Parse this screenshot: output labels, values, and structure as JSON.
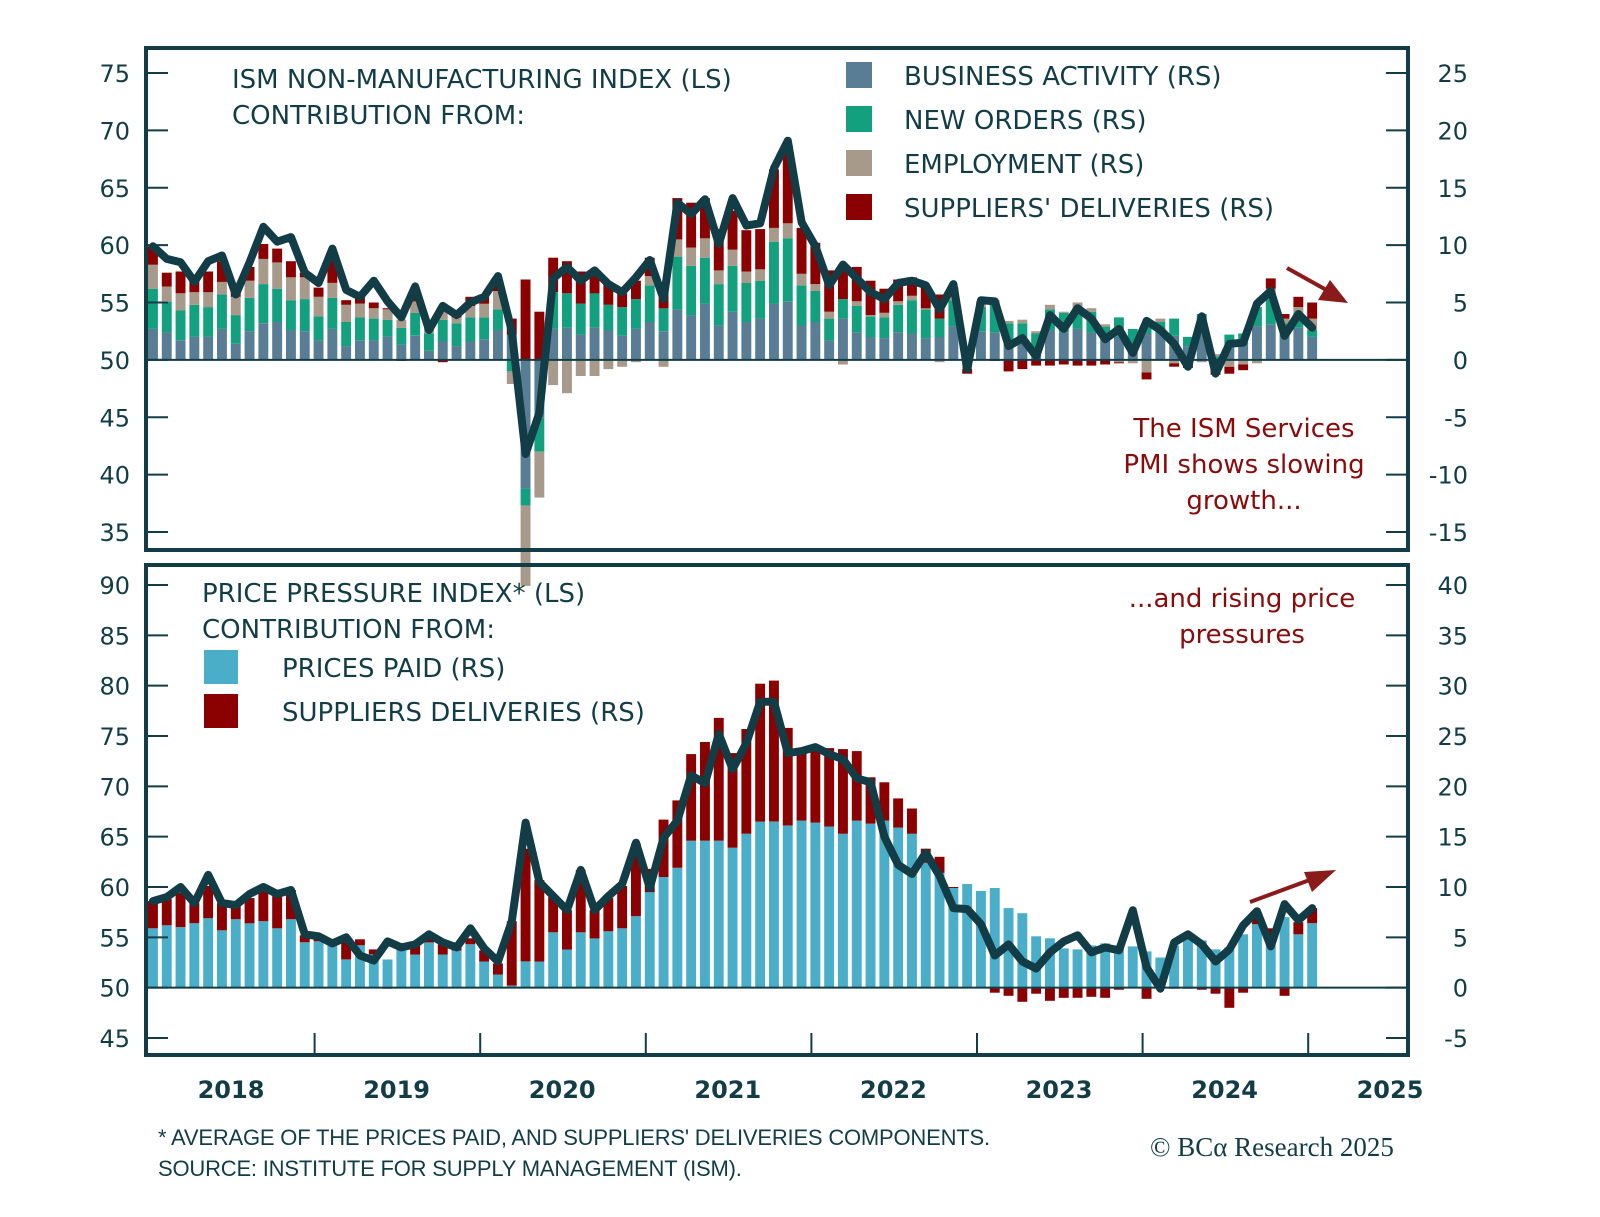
{
  "chart_data": [
    {
      "type": "bar",
      "subtype": "stacked-bar-with-line",
      "title": "ISM NON-MANUFACTURING INDEX (LS)",
      "subtitle": "CONTRIBUTION FROM:",
      "annotation": [
        "The ISM Services",
        "PMI shows slowing",
        "growth..."
      ],
      "annotation_arrow": "down-right",
      "left_axis": {
        "ylim": [
          35,
          75
        ],
        "ticks": [
          75,
          70,
          65,
          60,
          55,
          50,
          45,
          40,
          35
        ]
      },
      "right_axis": {
        "ylim": [
          -15,
          25
        ],
        "ticks": [
          25,
          20,
          15,
          10,
          5,
          0,
          -5,
          -10,
          -15
        ]
      },
      "x_start": "2018-01",
      "x_end": "2025-01",
      "frequency": "monthly",
      "x_tick_labels": [
        "2018",
        "2019",
        "2020",
        "2021",
        "2022",
        "2023",
        "2024",
        "2025"
      ],
      "legend_placement": "top-right",
      "line": {
        "name": "ISM NON-MANUFACTURING INDEX (LS)",
        "color": "#123d46",
        "values": [
          59.9,
          58.8,
          58.5,
          56.8,
          58.6,
          59.1,
          55.7,
          58.5,
          61.6,
          60.3,
          60.7,
          57.6,
          56.7,
          59.7,
          56.1,
          55.5,
          56.9,
          55.1,
          53.7,
          56.4,
          52.6,
          54.7,
          53.9,
          55.0,
          55.5,
          57.3,
          52.5,
          41.8,
          45.4,
          57.1,
          58.1,
          56.9,
          57.8,
          56.6,
          55.9,
          57.2,
          58.7,
          55.3,
          63.7,
          62.7,
          64.0,
          60.1,
          64.1,
          61.7,
          61.9,
          66.7,
          69.1,
          62.0,
          59.9,
          56.5,
          58.3,
          57.1,
          55.9,
          55.3,
          56.7,
          56.9,
          56.5,
          54.4,
          56.6,
          49.2,
          55.2,
          55.1,
          51.2,
          51.9,
          50.3,
          53.9,
          52.7,
          54.5,
          53.6,
          51.8,
          52.7,
          50.6,
          53.4,
          52.6,
          51.4,
          49.4,
          53.8,
          48.8,
          51.4,
          51.5,
          54.9,
          56.0,
          52.1,
          54.0,
          52.8
        ]
      },
      "series": [
        {
          "name": "BUSINESS ACTIVITY (RS)",
          "color": "#587d95",
          "values": [
            2.7,
            2.4,
            1.7,
            2.0,
            2.0,
            2.7,
            1.4,
            2.5,
            3.2,
            3.3,
            2.6,
            2.5,
            1.7,
            2.7,
            1.2,
            1.7,
            1.7,
            2.0,
            1.3,
            2.1,
            0.8,
            1.6,
            1.2,
            1.6,
            1.8,
            2.6,
            2.2,
            -11.2,
            -5.0,
            2.7,
            2.8,
            2.2,
            2.8,
            2.6,
            2.1,
            2.7,
            3.3,
            2.5,
            4.4,
            3.9,
            4.9,
            3.0,
            4.2,
            3.3,
            3.6,
            4.9,
            5.1,
            3.0,
            3.3,
            1.7,
            3.6,
            2.4,
            2.0,
            1.9,
            2.4,
            2.3,
            1.9,
            2.0,
            2.9,
            -0.3,
            2.5,
            2.4,
            1.7,
            1.9,
            1.1,
            2.6,
            2.4,
            2.7,
            2.4,
            1.7,
            2.0,
            1.3,
            2.3,
            2.3,
            2.1,
            1.2,
            2.4,
            -0.5,
            1.3,
            1.5,
            2.9,
            3.1,
            2.0,
            2.8,
            2.0
          ]
        },
        {
          "name": "NEW ORDERS (RS)",
          "color": "#13a07f",
          "values": [
            3.5,
            2.7,
            2.6,
            2.8,
            2.6,
            3.0,
            2.5,
            2.9,
            3.4,
            2.9,
            2.6,
            2.8,
            2.1,
            2.7,
            2.1,
            2.0,
            1.9,
            1.5,
            1.5,
            2.0,
            1.5,
            1.9,
            2.0,
            2.1,
            1.9,
            1.8,
            -1.0,
            -1.5,
            -3.0,
            3.2,
            3.0,
            2.7,
            3.0,
            2.2,
            2.5,
            2.6,
            3.2,
            2.0,
            4.6,
            4.3,
            4.0,
            3.6,
            4.0,
            3.4,
            3.3,
            5.4,
            5.5,
            3.5,
            2.7,
            1.9,
            1.7,
            2.3,
            1.8,
            1.8,
            2.4,
            2.9,
            2.5,
            1.6,
            2.3,
            0.3,
            2.1,
            2.5,
            1.5,
            1.3,
            1.2,
            1.8,
            1.7,
            1.9,
            1.8,
            1.2,
            1.7,
            1.4,
            0.8,
            1.0,
            1.5,
            0.8,
            1.6,
            0.3,
            0.9,
            0.8,
            1.7,
            2.2,
            1.2,
            1.3,
            0.6
          ]
        },
        {
          "name": "EMPLOYMENT (RS)",
          "color": "#a89a8a",
          "values": [
            2.1,
            1.3,
            1.5,
            1.1,
            1.3,
            1.1,
            1.6,
            1.5,
            2.2,
            2.3,
            2.0,
            1.9,
            1.7,
            1.3,
            1.5,
            1.2,
            0.9,
            0.9,
            0.7,
            1.0,
            0.7,
            1.0,
            0.5,
            1.0,
            1.2,
            1.6,
            -1.1,
            -7.0,
            -4.0,
            -2.2,
            -2.9,
            -1.4,
            -1.4,
            -0.8,
            -0.6,
            -0.2,
            0.8,
            -0.6,
            1.5,
            1.6,
            1.7,
            1.2,
            1.4,
            1.0,
            1.0,
            1.2,
            1.3,
            1.0,
            0.6,
            0.6,
            -0.4,
            0.4,
            0.1,
            0.4,
            0.3,
            0.4,
            0.1,
            -0.2,
            0.3,
            -0.5,
            0.5,
            0.3,
            0.2,
            0.3,
            0.2,
            0.4,
            0.1,
            0.4,
            0.3,
            0.2,
            -0.2,
            -0.3,
            -1.1,
            0.3,
            -0.3,
            -0.2,
            -0.2,
            0.2,
            -0.6,
            -0.4,
            -0.3,
            0.9,
            0.4,
            0.5,
            1.0
          ]
        },
        {
          "name": "SUPPLIERS' DELIVERIES (RS)",
          "color": "#8b0000",
          "values": [
            1.6,
            1.2,
            1.9,
            1.4,
            1.8,
            1.8,
            0.8,
            1.2,
            1.3,
            1.2,
            1.4,
            0.4,
            0.8,
            2.2,
            0.4,
            0.7,
            0.5,
            0.1,
            -0.1,
            0.6,
            0.2,
            -0.2,
            0.2,
            0.8,
            0.6,
            0.9,
            1.4,
            7.0,
            4.2,
            3.0,
            2.8,
            2.8,
            1.6,
            1.8,
            1.2,
            1.6,
            1.6,
            1.6,
            3.6,
            3.9,
            3.5,
            3.6,
            3.4,
            3.6,
            3.5,
            5.1,
            6.8,
            4.0,
            3.6,
            3.6,
            2.5,
            3.0,
            3.0,
            2.1,
            1.9,
            1.6,
            1.8,
            2.1,
            0.8,
            -0.4,
            0.0,
            -0.1,
            -1.0,
            -0.8,
            -0.5,
            -0.5,
            -0.4,
            -0.5,
            -0.5,
            -0.4,
            -0.1,
            0.0,
            -0.6,
            0.0,
            -0.3,
            -0.5,
            0.0,
            -0.8,
            -0.6,
            -0.5,
            0.0,
            0.9,
            0.4,
            0.9,
            1.4
          ]
        }
      ]
    },
    {
      "type": "bar",
      "subtype": "stacked-bar-with-line",
      "title": "PRICE PRESSURE INDEX* (LS)",
      "subtitle": "CONTRIBUTION FROM:",
      "annotation": [
        "...and rising price",
        "pressures"
      ],
      "annotation_arrow": "up-right",
      "left_axis": {
        "ylim": [
          45,
          90
        ],
        "ticks": [
          90,
          85,
          80,
          75,
          70,
          65,
          60,
          55,
          50,
          45
        ]
      },
      "right_axis": {
        "ylim": [
          -5,
          40
        ],
        "ticks": [
          40,
          35,
          30,
          25,
          20,
          15,
          10,
          5,
          0,
          -5
        ]
      },
      "x_start": "2018-01",
      "x_end": "2025-01",
      "frequency": "monthly",
      "x_tick_labels": [
        "2018",
        "2019",
        "2020",
        "2021",
        "2022",
        "2023",
        "2024",
        "2025"
      ],
      "legend_placement": "top-left",
      "line": {
        "name": "PRICE PRESSURE INDEX* (LS)",
        "color": "#123d46",
        "values": [
          58.6,
          59.0,
          60.0,
          58.4,
          61.2,
          58.4,
          58.2,
          59.3,
          60.0,
          59.3,
          59.7,
          55.3,
          55.1,
          54.4,
          55.0,
          53.2,
          52.7,
          54.6,
          54.0,
          54.3,
          55.3,
          54.5,
          54.0,
          55.9,
          53.9,
          52.6,
          56.6,
          66.4,
          60.5,
          59.1,
          57.7,
          61.7,
          57.7,
          59.1,
          60.3,
          64.4,
          59.9,
          64.9,
          66.6,
          71.1,
          70.3,
          75.2,
          71.7,
          74.3,
          78.4,
          78.4,
          73.3,
          73.5,
          73.9,
          73.2,
          72.7,
          70.8,
          70.4,
          65.0,
          62.2,
          61.3,
          63.4,
          61.1,
          57.9,
          57.8,
          56.3,
          53.2,
          54.3,
          52.6,
          51.9,
          53.5,
          54.6,
          55.2,
          53.5,
          54.0,
          53.7,
          57.7,
          52.0,
          49.9,
          54.5,
          55.3,
          54.3,
          52.6,
          53.8,
          56.2,
          57.6,
          54.1,
          58.3,
          56.7,
          57.9
        ]
      },
      "series": [
        {
          "name": "PRICES PAID (RS)",
          "color": "#4aaec9",
          "values": [
            5.9,
            6.2,
            6.0,
            6.4,
            6.9,
            5.7,
            6.8,
            6.4,
            6.6,
            5.9,
            6.8,
            4.5,
            4.6,
            4.4,
            2.8,
            4.2,
            3.3,
            2.8,
            3.8,
            3.3,
            4.5,
            3.3,
            3.7,
            4.3,
            2.6,
            1.3,
            0.2,
            2.6,
            2.6,
            5.5,
            3.8,
            5.5,
            4.9,
            5.6,
            5.9,
            7.1,
            9.5,
            11.0,
            11.9,
            14.6,
            14.6,
            14.6,
            13.9,
            15.3,
            16.5,
            16.5,
            16.1,
            16.6,
            16.4,
            16.0,
            15.3,
            16.6,
            16.3,
            16.6,
            15.9,
            15.3,
            12.4,
            11.4,
            9.9,
            10.3,
            9.6,
            9.9,
            7.9,
            7.4,
            5.1,
            4.9,
            3.9,
            3.8,
            4.2,
            4.4,
            4.2,
            4.1,
            3.6,
            3.0,
            4.2,
            4.9,
            4.7,
            3.8,
            4.0,
            5.3,
            6.3,
            4.5,
            7.0,
            5.3,
            6.4
          ]
        },
        {
          "name": "SUPPLIERS DELIVERIES (RS)",
          "color": "#8b0000",
          "values": [
            2.7,
            2.6,
            3.4,
            2.0,
            3.2,
            2.7,
            1.4,
            2.5,
            3.0,
            3.2,
            2.9,
            0.7,
            0.4,
            0.2,
            2.2,
            0.6,
            0.5,
            -0.1,
            0.1,
            1.0,
            0.8,
            1.0,
            0.8,
            0.6,
            1.1,
            1.1,
            6.4,
            11.2,
            8.1,
            3.5,
            3.9,
            6.2,
            2.8,
            3.3,
            4.2,
            7.2,
            2.3,
            5.7,
            6.7,
            8.6,
            9.8,
            12.2,
            9.4,
            10.4,
            13.7,
            14.0,
            9.7,
            7.2,
            7.7,
            7.8,
            8.4,
            6.9,
            4.6,
            3.8,
            2.9,
            2.5,
            1.4,
            1.6,
            0.1,
            0.0,
            0.0,
            -0.5,
            -0.8,
            -1.4,
            -0.6,
            -1.3,
            -1.0,
            -1.0,
            -0.9,
            -1.0,
            -0.2,
            0.0,
            -1.1,
            0.0,
            -0.1,
            -0.1,
            -0.2,
            -0.6,
            -2.0,
            -0.5,
            0.6,
            1.4,
            -0.8,
            1.2,
            1.5
          ]
        }
      ]
    }
  ],
  "footnote": {
    "line1": "* AVERAGE OF THE PRICES PAID, AND SUPPLIERS' DELIVERIES COMPONENTS.",
    "line2": "SOURCE: INSTITUTE FOR SUPPLY MANAGEMENT (ISM)."
  },
  "copyright": "© BCα Research 2025"
}
